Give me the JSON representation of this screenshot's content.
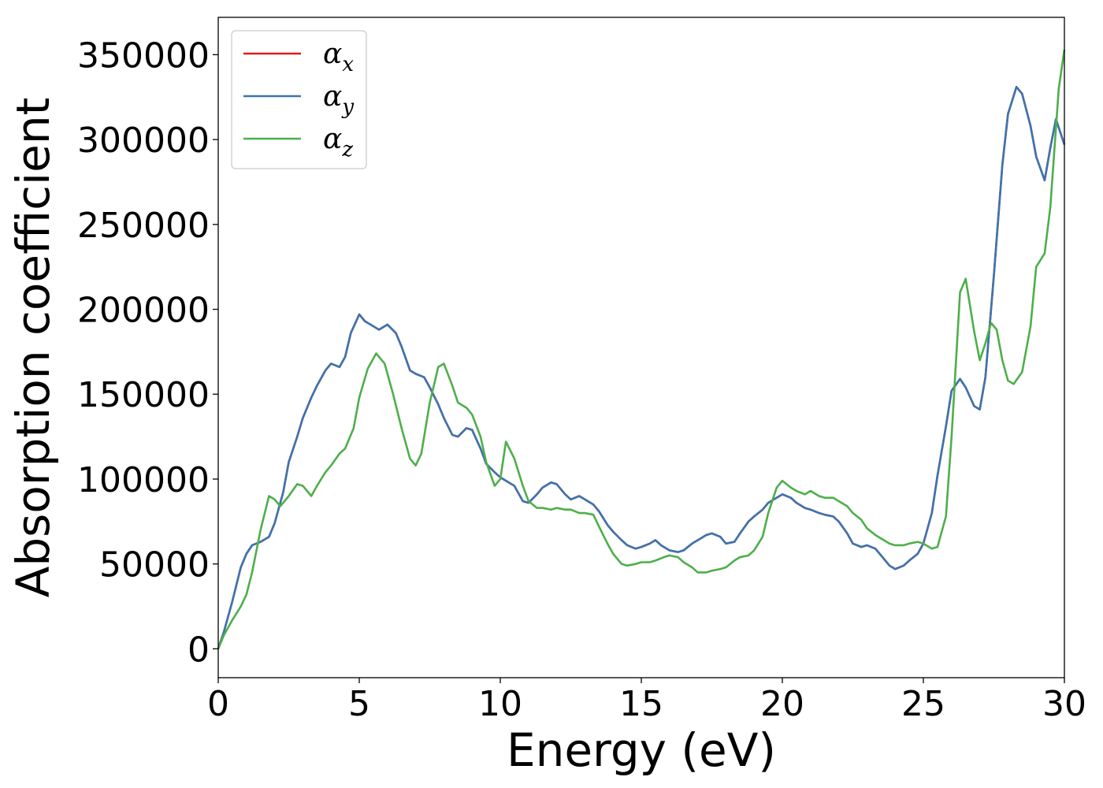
{
  "chart_data": {
    "type": "line",
    "title": "",
    "xlabel": "Energy (eV)",
    "ylabel": "Absorption coefficient",
    "xlim": [
      0,
      30
    ],
    "ylim": [
      -17000,
      372000
    ],
    "xticks": [
      0,
      5,
      10,
      15,
      20,
      25,
      30
    ],
    "yticks": [
      0,
      50000,
      100000,
      150000,
      200000,
      250000,
      300000,
      350000
    ],
    "grid": false,
    "legend_position": "top-left",
    "series": [
      {
        "name": "α",
        "subscript": "x",
        "color": "#e41a1c",
        "x": [
          0,
          0.2,
          0.5,
          0.8,
          1.0,
          1.2,
          1.5,
          1.8,
          2.0,
          2.3,
          2.5,
          2.8,
          3.0,
          3.3,
          3.5,
          3.8,
          4.0,
          4.3,
          4.5,
          4.7,
          5.0,
          5.2,
          5.5,
          5.7,
          6.0,
          6.3,
          6.5,
          6.8,
          7.0,
          7.3,
          7.5,
          7.8,
          8.0,
          8.3,
          8.5,
          8.8,
          9.0,
          9.3,
          9.5,
          9.8,
          10.0,
          10.3,
          10.5,
          10.8,
          11.0,
          11.3,
          11.5,
          11.8,
          12.0,
          12.3,
          12.5,
          12.8,
          13.0,
          13.3,
          13.5,
          13.8,
          14.0,
          14.3,
          14.5,
          14.8,
          15.0,
          15.3,
          15.5,
          15.7,
          16.0,
          16.3,
          16.5,
          16.8,
          17.0,
          17.3,
          17.5,
          17.8,
          18.0,
          18.3,
          18.5,
          18.8,
          19.0,
          19.3,
          19.5,
          19.8,
          20.0,
          20.3,
          20.5,
          20.8,
          21.0,
          21.3,
          21.5,
          21.8,
          22.0,
          22.3,
          22.5,
          22.8,
          23.0,
          23.3,
          23.5,
          23.8,
          24.0,
          24.3,
          24.5,
          24.8,
          25.0,
          25.3,
          25.5,
          25.8,
          26.0,
          26.3,
          26.5,
          26.8,
          27.0,
          27.2,
          27.5,
          27.8,
          28.0,
          28.3,
          28.5,
          28.8,
          29.0,
          29.3,
          29.5,
          29.7,
          30.0
        ],
        "y": [
          0,
          10000,
          28000,
          48000,
          56000,
          61000,
          63000,
          66000,
          74000,
          92000,
          110000,
          125000,
          136000,
          148000,
          155000,
          164000,
          168000,
          166000,
          172000,
          186000,
          197000,
          193000,
          190000,
          188000,
          191000,
          186000,
          178000,
          164000,
          162000,
          160000,
          154000,
          144000,
          136000,
          126000,
          125000,
          130000,
          129000,
          118000,
          109000,
          104000,
          101000,
          98000,
          96000,
          87000,
          86000,
          91000,
          95000,
          98000,
          97000,
          91000,
          88000,
          90000,
          88000,
          85000,
          81000,
          73000,
          69000,
          64000,
          61000,
          59000,
          60000,
          62000,
          64000,
          61000,
          58000,
          57000,
          58000,
          62000,
          64000,
          67000,
          68000,
          66000,
          62000,
          63000,
          68000,
          75000,
          78000,
          82000,
          86000,
          89000,
          91000,
          89000,
          86000,
          83000,
          82000,
          80000,
          79000,
          78000,
          75000,
          68000,
          62000,
          60000,
          61000,
          59000,
          55000,
          49000,
          47000,
          49000,
          52000,
          56000,
          62000,
          80000,
          102000,
          131000,
          152000,
          159000,
          154000,
          143000,
          141000,
          160000,
          220000,
          285000,
          315000,
          331000,
          327000,
          308000,
          290000,
          276000,
          295000,
          312000,
          297000
        ]
      },
      {
        "name": "α",
        "subscript": "y",
        "color": "#3b75af",
        "x": [
          0,
          0.2,
          0.5,
          0.8,
          1.0,
          1.2,
          1.5,
          1.8,
          2.0,
          2.3,
          2.5,
          2.8,
          3.0,
          3.3,
          3.5,
          3.8,
          4.0,
          4.3,
          4.5,
          4.7,
          5.0,
          5.2,
          5.5,
          5.7,
          6.0,
          6.3,
          6.5,
          6.8,
          7.0,
          7.3,
          7.5,
          7.8,
          8.0,
          8.3,
          8.5,
          8.8,
          9.0,
          9.3,
          9.5,
          9.8,
          10.0,
          10.3,
          10.5,
          10.8,
          11.0,
          11.3,
          11.5,
          11.8,
          12.0,
          12.3,
          12.5,
          12.8,
          13.0,
          13.3,
          13.5,
          13.8,
          14.0,
          14.3,
          14.5,
          14.8,
          15.0,
          15.3,
          15.5,
          15.7,
          16.0,
          16.3,
          16.5,
          16.8,
          17.0,
          17.3,
          17.5,
          17.8,
          18.0,
          18.3,
          18.5,
          18.8,
          19.0,
          19.3,
          19.5,
          19.8,
          20.0,
          20.3,
          20.5,
          20.8,
          21.0,
          21.3,
          21.5,
          21.8,
          22.0,
          22.3,
          22.5,
          22.8,
          23.0,
          23.3,
          23.5,
          23.8,
          24.0,
          24.3,
          24.5,
          24.8,
          25.0,
          25.3,
          25.5,
          25.8,
          26.0,
          26.3,
          26.5,
          26.8,
          27.0,
          27.2,
          27.5,
          27.8,
          28.0,
          28.3,
          28.5,
          28.8,
          29.0,
          29.3,
          29.5,
          29.7,
          30.0
        ],
        "y": [
          0,
          10000,
          28000,
          48000,
          56000,
          61000,
          63000,
          66000,
          74000,
          92000,
          110000,
          125000,
          136000,
          148000,
          155000,
          164000,
          168000,
          166000,
          172000,
          186000,
          197000,
          193000,
          190000,
          188000,
          191000,
          186000,
          178000,
          164000,
          162000,
          160000,
          154000,
          144000,
          136000,
          126000,
          125000,
          130000,
          129000,
          118000,
          109000,
          104000,
          101000,
          98000,
          96000,
          87000,
          86000,
          91000,
          95000,
          98000,
          97000,
          91000,
          88000,
          90000,
          88000,
          85000,
          81000,
          73000,
          69000,
          64000,
          61000,
          59000,
          60000,
          62000,
          64000,
          61000,
          58000,
          57000,
          58000,
          62000,
          64000,
          67000,
          68000,
          66000,
          62000,
          63000,
          68000,
          75000,
          78000,
          82000,
          86000,
          89000,
          91000,
          89000,
          86000,
          83000,
          82000,
          80000,
          79000,
          78000,
          75000,
          68000,
          62000,
          60000,
          61000,
          59000,
          55000,
          49000,
          47000,
          49000,
          52000,
          56000,
          62000,
          80000,
          102000,
          131000,
          152000,
          159000,
          154000,
          143000,
          141000,
          160000,
          220000,
          285000,
          315000,
          331000,
          327000,
          308000,
          290000,
          276000,
          295000,
          312000,
          297000
        ]
      },
      {
        "name": "α",
        "subscript": "z",
        "color": "#4daf4a",
        "x": [
          0,
          0.2,
          0.5,
          0.8,
          1.0,
          1.2,
          1.5,
          1.8,
          2.0,
          2.2,
          2.5,
          2.8,
          3.0,
          3.3,
          3.5,
          3.8,
          4.0,
          4.3,
          4.5,
          4.8,
          5.0,
          5.3,
          5.6,
          5.9,
          6.2,
          6.5,
          6.8,
          7.0,
          7.2,
          7.5,
          7.8,
          8.0,
          8.3,
          8.5,
          8.8,
          9.0,
          9.3,
          9.5,
          9.8,
          10.0,
          10.2,
          10.5,
          10.8,
          11.0,
          11.3,
          11.5,
          11.8,
          12.0,
          12.3,
          12.5,
          12.8,
          13.0,
          13.3,
          13.5,
          13.8,
          14.0,
          14.3,
          14.5,
          14.8,
          15.0,
          15.3,
          15.5,
          15.8,
          16.0,
          16.3,
          16.5,
          16.8,
          17.0,
          17.3,
          17.5,
          17.8,
          18.0,
          18.3,
          18.5,
          18.8,
          19.0,
          19.3,
          19.5,
          19.8,
          20.0,
          20.3,
          20.5,
          20.8,
          21.0,
          21.3,
          21.5,
          21.8,
          22.0,
          22.3,
          22.5,
          22.8,
          23.0,
          23.3,
          23.5,
          23.8,
          24.0,
          24.3,
          24.5,
          24.8,
          25.0,
          25.3,
          25.5,
          25.8,
          26.0,
          26.3,
          26.5,
          26.8,
          27.0,
          27.2,
          27.4,
          27.6,
          27.8,
          28.0,
          28.2,
          28.5,
          28.8,
          29.0,
          29.3,
          29.5,
          29.8,
          30.0
        ],
        "y": [
          0,
          8000,
          17000,
          25000,
          32000,
          45000,
          70000,
          90000,
          88000,
          84000,
          90000,
          97000,
          96000,
          90000,
          96000,
          104000,
          108000,
          115000,
          118000,
          130000,
          148000,
          165000,
          174000,
          168000,
          150000,
          130000,
          112000,
          108000,
          115000,
          145000,
          166000,
          168000,
          155000,
          145000,
          142000,
          138000,
          125000,
          110000,
          96000,
          100000,
          122000,
          112000,
          96000,
          87000,
          83000,
          83000,
          82000,
          83000,
          82000,
          82000,
          80000,
          80000,
          79000,
          72000,
          62000,
          56000,
          50000,
          49000,
          50000,
          51000,
          51000,
          52000,
          54000,
          55000,
          54000,
          51000,
          48000,
          45000,
          45000,
          46000,
          47000,
          48000,
          52000,
          54000,
          55000,
          58000,
          66000,
          80000,
          95000,
          99000,
          95000,
          93000,
          91000,
          93000,
          90000,
          89000,
          89000,
          87000,
          84000,
          80000,
          76000,
          71000,
          67000,
          65000,
          62000,
          61000,
          61000,
          62000,
          63000,
          62000,
          59000,
          60000,
          78000,
          125000,
          210000,
          218000,
          187000,
          170000,
          180000,
          192000,
          188000,
          170000,
          158000,
          156000,
          163000,
          190000,
          225000,
          233000,
          260000,
          330000,
          353000
        ]
      }
    ]
  }
}
